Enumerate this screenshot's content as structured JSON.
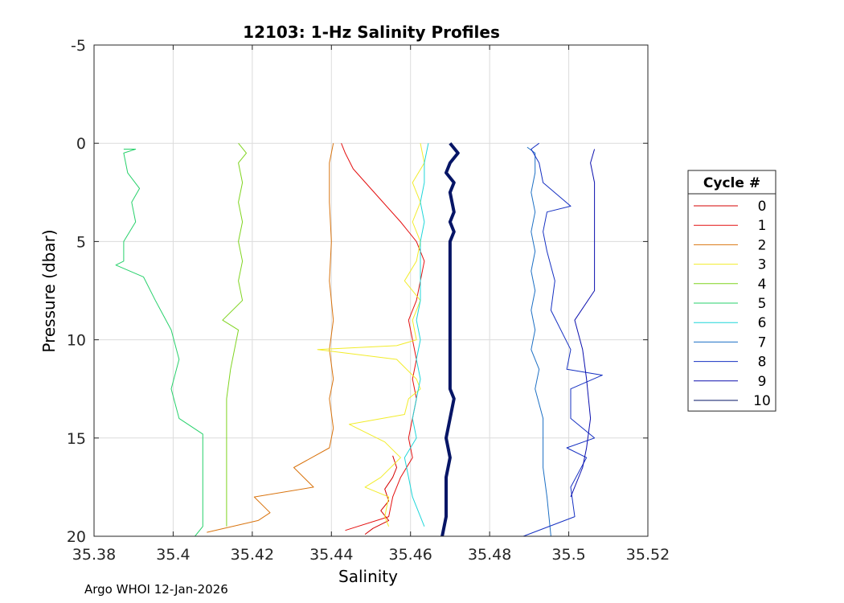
{
  "chart_data": {
    "type": "line",
    "title": "12103: 1-Hz Salinity Profiles",
    "xlabel": "Salinity",
    "ylabel": "Pressure (dbar)",
    "xlim": [
      35.38,
      35.52
    ],
    "ylim": [
      -5,
      20
    ],
    "y_reversed": true,
    "grid": true,
    "xticks": [
      35.38,
      35.4,
      35.42,
      35.44,
      35.46,
      35.48,
      35.5,
      35.52
    ],
    "xtick_labels": [
      "35.38",
      "35.4",
      "35.42",
      "35.44",
      "35.46",
      "35.48",
      "35.5",
      "35.52"
    ],
    "yticks": [
      -5,
      0,
      5,
      10,
      15,
      20
    ],
    "ytick_labels": [
      "-5",
      "0",
      "5",
      "10",
      "15",
      "20"
    ],
    "legend": {
      "title": "Cycle #",
      "placement": "right"
    },
    "series": [
      {
        "name": "0",
        "color": "#d40000",
        "width": 1,
        "points": [
          [
            35.4555,
            15.9
          ],
          [
            35.4565,
            16.5
          ],
          [
            35.4555,
            17.0
          ],
          [
            35.4535,
            17.6
          ],
          [
            35.4545,
            18.2
          ],
          [
            35.4525,
            18.7
          ],
          [
            35.4545,
            19.2
          ],
          [
            35.4505,
            19.6
          ],
          [
            35.4485,
            19.9
          ]
        ]
      },
      {
        "name": "1",
        "color": "#e41010",
        "width": 1,
        "points": [
          [
            35.4425,
            0
          ],
          [
            35.4435,
            0.5
          ],
          [
            35.4455,
            1.3
          ],
          [
            35.4495,
            2.2
          ],
          [
            35.4535,
            3.1
          ],
          [
            35.4575,
            4.0
          ],
          [
            35.4615,
            5.0
          ],
          [
            35.4635,
            6.0
          ],
          [
            35.4625,
            7.0
          ],
          [
            35.4615,
            8.0
          ],
          [
            35.4595,
            9.0
          ],
          [
            35.4605,
            10.0
          ],
          [
            35.4615,
            11.0
          ],
          [
            35.4605,
            12.0
          ],
          [
            35.4615,
            13.0
          ],
          [
            35.4605,
            14.0
          ],
          [
            35.4595,
            15.0
          ],
          [
            35.4605,
            16.0
          ],
          [
            35.4575,
            17.0
          ],
          [
            35.4555,
            18.0
          ],
          [
            35.4545,
            19.0
          ],
          [
            35.4435,
            19.7
          ]
        ]
      },
      {
        "name": "2",
        "color": "#d9740f",
        "width": 1,
        "points": [
          [
            35.4405,
            0
          ],
          [
            35.4395,
            1
          ],
          [
            35.4395,
            3
          ],
          [
            35.44,
            5
          ],
          [
            35.4395,
            7
          ],
          [
            35.4405,
            9
          ],
          [
            35.4395,
            10.5
          ],
          [
            35.4405,
            12.0
          ],
          [
            35.4395,
            13.0
          ],
          [
            35.4405,
            14.5
          ],
          [
            35.4395,
            15.5
          ],
          [
            35.4305,
            16.5
          ],
          [
            35.4355,
            17.5
          ],
          [
            35.4205,
            18.0
          ],
          [
            35.4245,
            18.8
          ],
          [
            35.4215,
            19.2
          ],
          [
            35.4085,
            19.8
          ]
        ]
      },
      {
        "name": "3",
        "color": "#f2ec2a",
        "width": 1,
        "points": [
          [
            35.4625,
            0
          ],
          [
            35.4635,
            1
          ],
          [
            35.4605,
            2
          ],
          [
            35.4625,
            3
          ],
          [
            35.4605,
            4
          ],
          [
            35.4625,
            5
          ],
          [
            35.4615,
            6
          ],
          [
            35.4585,
            7
          ],
          [
            35.4625,
            8
          ],
          [
            35.4605,
            9
          ],
          [
            35.4615,
            10
          ],
          [
            35.4565,
            10.3
          ],
          [
            35.4365,
            10.5
          ],
          [
            35.4565,
            11.0
          ],
          [
            35.4615,
            12.0
          ],
          [
            35.4625,
            12.5
          ],
          [
            35.4595,
            13.0
          ],
          [
            35.4585,
            13.8
          ],
          [
            35.4445,
            14.3
          ],
          [
            35.4535,
            15.2
          ],
          [
            35.4575,
            16.0
          ],
          [
            35.4525,
            17.0
          ],
          [
            35.4485,
            17.5
          ],
          [
            35.4545,
            18.0
          ],
          [
            35.4535,
            19.0
          ],
          [
            35.4545,
            19.5
          ]
        ]
      },
      {
        "name": "4",
        "color": "#7fd41f",
        "width": 1,
        "points": [
          [
            35.4165,
            0
          ],
          [
            35.4185,
            0.5
          ],
          [
            35.4165,
            1
          ],
          [
            35.4175,
            2
          ],
          [
            35.4165,
            3
          ],
          [
            35.4175,
            4
          ],
          [
            35.4165,
            5
          ],
          [
            35.4175,
            6
          ],
          [
            35.4165,
            7
          ],
          [
            35.4175,
            8
          ],
          [
            35.4125,
            9.0
          ],
          [
            35.4165,
            9.5
          ],
          [
            35.4155,
            10.5
          ],
          [
            35.4145,
            11.5
          ],
          [
            35.4135,
            13.0
          ],
          [
            35.4135,
            15.0
          ],
          [
            35.4135,
            17.0
          ],
          [
            35.4135,
            19.5
          ]
        ]
      },
      {
        "name": "5",
        "color": "#27d16b",
        "width": 1,
        "points": [
          [
            35.3875,
            0.3
          ],
          [
            35.3905,
            0.3
          ],
          [
            35.3875,
            0.5
          ],
          [
            35.3885,
            1.5
          ],
          [
            35.3915,
            2.3
          ],
          [
            35.3895,
            3.0
          ],
          [
            35.3905,
            4.0
          ],
          [
            35.3875,
            5.0
          ],
          [
            35.3875,
            6.0
          ],
          [
            35.3855,
            6.2
          ],
          [
            35.3925,
            6.8
          ],
          [
            35.3955,
            8.0
          ],
          [
            35.3995,
            9.5
          ],
          [
            35.4015,
            11.0
          ],
          [
            35.3995,
            12.5
          ],
          [
            35.4015,
            14.0
          ],
          [
            35.4075,
            14.8
          ],
          [
            35.4075,
            17.0
          ],
          [
            35.4075,
            19.5
          ],
          [
            35.4055,
            20.0
          ]
        ]
      },
      {
        "name": "6",
        "color": "#1fd6d9",
        "width": 1,
        "points": [
          [
            35.4645,
            0
          ],
          [
            35.4635,
            1
          ],
          [
            35.4635,
            2
          ],
          [
            35.4625,
            3
          ],
          [
            35.4635,
            4
          ],
          [
            35.4625,
            5
          ],
          [
            35.4625,
            6
          ],
          [
            35.4625,
            7
          ],
          [
            35.4625,
            8
          ],
          [
            35.4615,
            9
          ],
          [
            35.4625,
            10
          ],
          [
            35.4615,
            11
          ],
          [
            35.4625,
            12
          ],
          [
            35.4615,
            13
          ],
          [
            35.4605,
            14
          ],
          [
            35.4615,
            15
          ],
          [
            35.4585,
            16
          ],
          [
            35.4595,
            17
          ],
          [
            35.4605,
            18
          ],
          [
            35.4625,
            19
          ],
          [
            35.4635,
            19.5
          ]
        ]
      },
      {
        "name": "7",
        "color": "#1c6fc4",
        "width": 1,
        "points": [
          [
            35.4895,
            0.2
          ],
          [
            35.4915,
            0.5
          ],
          [
            35.4915,
            1.5
          ],
          [
            35.4905,
            2.5
          ],
          [
            35.4915,
            3.5
          ],
          [
            35.4905,
            4.5
          ],
          [
            35.4915,
            5.5
          ],
          [
            35.4905,
            6.5
          ],
          [
            35.4915,
            7.5
          ],
          [
            35.4905,
            8.5
          ],
          [
            35.4915,
            9.5
          ],
          [
            35.4905,
            10.5
          ],
          [
            35.4925,
            11.5
          ],
          [
            35.4915,
            12.5
          ],
          [
            35.4935,
            14.0
          ],
          [
            35.4935,
            15.0
          ],
          [
            35.4935,
            16.5
          ],
          [
            35.4945,
            18.0
          ],
          [
            35.4955,
            20.0
          ]
        ]
      },
      {
        "name": "8",
        "color": "#1530c2",
        "width": 1,
        "points": [
          [
            35.4925,
            0
          ],
          [
            35.4905,
            0.3
          ],
          [
            35.4925,
            1
          ],
          [
            35.4935,
            2
          ],
          [
            35.5005,
            3.2
          ],
          [
            35.4945,
            3.5
          ],
          [
            35.4935,
            4.5
          ],
          [
            35.4945,
            5.5
          ],
          [
            35.4965,
            7.0
          ],
          [
            35.4955,
            8.5
          ],
          [
            35.5005,
            10.5
          ],
          [
            35.4995,
            11.5
          ],
          [
            35.5085,
            11.8
          ],
          [
            35.5005,
            12.5
          ],
          [
            35.5005,
            14.0
          ],
          [
            35.5065,
            15.0
          ],
          [
            35.4995,
            15.5
          ],
          [
            35.5045,
            16.0
          ],
          [
            35.5005,
            17.5
          ],
          [
            35.5015,
            19.0
          ],
          [
            35.4885,
            20.0
          ]
        ]
      },
      {
        "name": "9",
        "color": "#0b0fae",
        "width": 1,
        "points": [
          [
            35.5065,
            0.3
          ],
          [
            35.5055,
            1.0
          ],
          [
            35.5065,
            2.0
          ],
          [
            35.5065,
            4.0
          ],
          [
            35.5065,
            6.0
          ],
          [
            35.5065,
            7.5
          ],
          [
            35.5015,
            9.0
          ],
          [
            35.5035,
            10.5
          ],
          [
            35.5045,
            12.0
          ],
          [
            35.5055,
            14.0
          ],
          [
            35.5045,
            15.5
          ],
          [
            35.5035,
            16.5
          ],
          [
            35.5005,
            18.0
          ]
        ]
      },
      {
        "name": "10",
        "color": "#061566",
        "width": 4,
        "points": [
          [
            35.47,
            0
          ],
          [
            35.472,
            0.5
          ],
          [
            35.47,
            1.0
          ],
          [
            35.469,
            1.5
          ],
          [
            35.471,
            2.0
          ],
          [
            35.47,
            2.5
          ],
          [
            35.471,
            3.5
          ],
          [
            35.47,
            4.0
          ],
          [
            35.471,
            4.5
          ],
          [
            35.47,
            5.0
          ],
          [
            35.47,
            6.0
          ],
          [
            35.47,
            7.0
          ],
          [
            35.47,
            8.0
          ],
          [
            35.47,
            10.0
          ],
          [
            35.47,
            11.0
          ],
          [
            35.47,
            12.5
          ],
          [
            35.471,
            13.0
          ],
          [
            35.47,
            14.0
          ],
          [
            35.469,
            15.0
          ],
          [
            35.47,
            16.0
          ],
          [
            35.469,
            17.0
          ],
          [
            35.469,
            18.0
          ],
          [
            35.469,
            19.0
          ],
          [
            35.468,
            20.0
          ]
        ]
      }
    ]
  },
  "footer": "Argo WHOI 12-Jan-2026"
}
